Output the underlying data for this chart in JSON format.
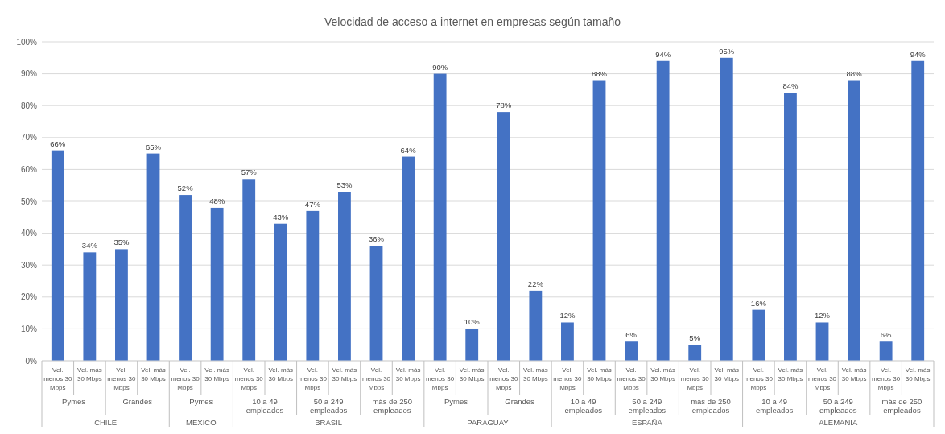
{
  "chart_data": {
    "type": "bar",
    "title": "Velocidad de acceso a internet en empresas según tamaño",
    "categories": [
      "Vel. menos 30 Mbps",
      "Vel. más 30 Mbps",
      "Vel. menos 30 Mbps",
      "Vel. más 30 Mbps",
      "Vel. menos 30 Mbps",
      "Vel. más 30 Mbps",
      "Vel. menos 30 Mbps",
      "Vel. más 30 Mbps",
      "Vel. menos 30 Mbps",
      "Vel. más 30 Mbps",
      "Vel. menos 30 Mbps",
      "Vel. más 30 Mbps",
      "Vel. menos 30 Mbps",
      "Vel. más 30 Mbps",
      "Vel. menos 30 Mbps",
      "Vel. más 30 Mbps",
      "Vel. menos 30 Mbps",
      "Vel. más 30 Mbps",
      "Vel. menos 30 Mbps",
      "Vel. más 30 Mbps",
      "Vel. menos 30 Mbps",
      "Vel. más 30 Mbps",
      "Vel. menos 30 Mbps",
      "Vel. más 30 Mbps",
      "Vel. menos 30 Mbps",
      "Vel. más 30 Mbps",
      "Vel. menos 30 Mbps",
      "Vel. más 30 Mbps"
    ],
    "values": [
      66,
      34,
      35,
      65,
      52,
      48,
      57,
      43,
      47,
      53,
      36,
      64,
      90,
      10,
      78,
      22,
      12,
      88,
      6,
      94,
      5,
      95,
      16,
      84,
      12,
      88,
      6,
      94
    ],
    "value_labels": [
      "66%",
      "34%",
      "35%",
      "65%",
      "52%",
      "48%",
      "57%",
      "43%",
      "47%",
      "53%",
      "36%",
      "64%",
      "90%",
      "10%",
      "78%",
      "22%",
      "12%",
      "88%",
      "6%",
      "94%",
      "5%",
      "95%",
      "16%",
      "84%",
      "12%",
      "88%",
      "6%",
      "94%"
    ],
    "color": "#4472c4",
    "ylim": [
      0,
      100
    ],
    "yticks": [
      {
        "value": 0,
        "label": "0%"
      },
      {
        "value": 10,
        "label": "10%"
      },
      {
        "value": 20,
        "label": "20%"
      },
      {
        "value": 30,
        "label": "30%"
      },
      {
        "value": 40,
        "label": "40%"
      },
      {
        "value": 50,
        "label": "50%"
      },
      {
        "value": 60,
        "label": "60%"
      },
      {
        "value": 70,
        "label": "70%"
      },
      {
        "value": 80,
        "label": "80%"
      },
      {
        "value": 90,
        "label": "90%"
      },
      {
        "value": 100,
        "label": "100%"
      }
    ],
    "grid": "y",
    "annotations": [
      "Pymes",
      "Grandes",
      "Pymes",
      "10 a 49 empleados",
      "50 a 249 empleados",
      "más de 250 empleados",
      "Pymes",
      "Grandes",
      "10 a 49 empleados",
      "50 a 249 empleados",
      "más de 250 empleados",
      "10 a 49 empleados",
      "50 a 249 empleados",
      "más de 250 empleados",
      "CHILE",
      "MEXICO",
      "BRASIL",
      "PARAGUAY",
      "ESPAÑA",
      "ALEMANIA"
    ]
  }
}
